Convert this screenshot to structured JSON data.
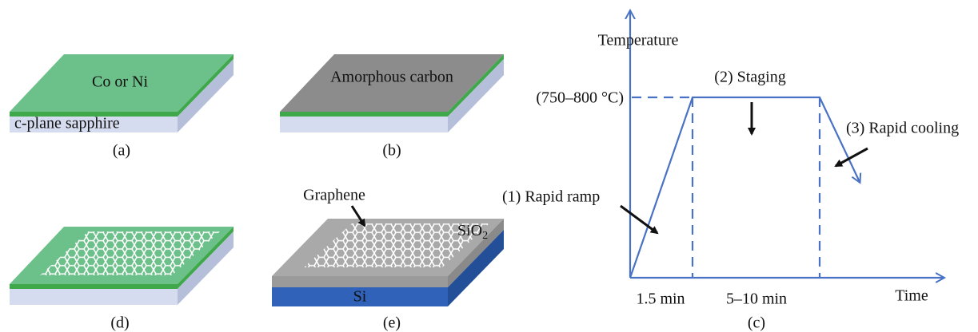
{
  "panels": {
    "a": {
      "top_label": "Co or Ni",
      "base_label": "c-plane sapphire",
      "caption": "(a)"
    },
    "b": {
      "top_label": "Amorphous carbon",
      "caption": "(b)"
    },
    "d": {
      "caption": "(d)"
    },
    "e": {
      "graphene_label": "Graphene",
      "oxide_label": {
        "base": "SiO",
        "sub": "2"
      },
      "substrate_label": "Si",
      "caption": "(e)"
    },
    "c": {
      "y_axis_label": "Temperature",
      "x_axis_label": "Time",
      "temperature_range": "(750–800 °C)",
      "steps": [
        "(1) Rapid ramp",
        "(2) Staging",
        "(3) Rapid cooling"
      ],
      "durations": [
        "1.5 min",
        "5–10 min"
      ],
      "caption": "(c)"
    }
  }
}
